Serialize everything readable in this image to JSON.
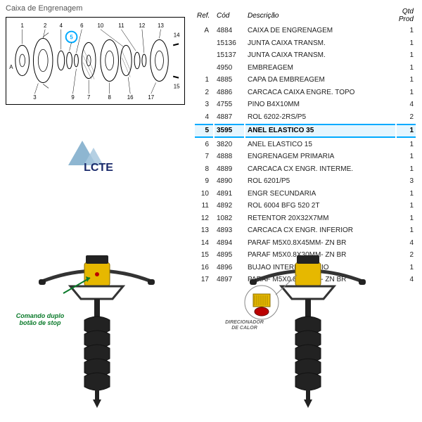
{
  "title": "Caixa de Engrenagem",
  "table": {
    "headers": {
      "ref": "Ref.",
      "cod": "Cód",
      "desc": "Descrição",
      "qtd": "Qtd Prod"
    },
    "rows": [
      {
        "ref": "A",
        "cod": "4884",
        "desc": "CAIXA DE ENGRENAGEM",
        "qtd": "1",
        "hl": false
      },
      {
        "ref": "",
        "cod": "15136",
        "desc": "JUNTA CAIXA TRANSM.",
        "qtd": "1",
        "hl": false
      },
      {
        "ref": "",
        "cod": "15137",
        "desc": "JUNTA CAIXA TRANSM.",
        "qtd": "1",
        "hl": false
      },
      {
        "ref": "",
        "cod": "4950",
        "desc": "EMBREAGEM",
        "qtd": "1",
        "hl": false
      },
      {
        "ref": "1",
        "cod": "4885",
        "desc": "CAPA DA EMBREAGEM",
        "qtd": "1",
        "hl": false
      },
      {
        "ref": "2",
        "cod": "4886",
        "desc": "CARCACA CAIXA ENGRE. TOPO",
        "qtd": "1",
        "hl": false
      },
      {
        "ref": "3",
        "cod": "4755",
        "desc": "PINO B4X10MM",
        "qtd": "4",
        "hl": false
      },
      {
        "ref": "4",
        "cod": "4887",
        "desc": "ROL 6202-2RS/P5",
        "qtd": "2",
        "hl": false
      },
      {
        "ref": "5",
        "cod": "3595",
        "desc": "ANEL ELASTICO 35",
        "qtd": "1",
        "hl": true
      },
      {
        "ref": "6",
        "cod": "3820",
        "desc": "ANEL ELASTICO 15",
        "qtd": "1",
        "hl": false
      },
      {
        "ref": "7",
        "cod": "4888",
        "desc": "ENGRENAGEM PRIMARIA",
        "qtd": "1",
        "hl": false
      },
      {
        "ref": "8",
        "cod": "4889",
        "desc": "CARCACA CX ENGR. INTERME.",
        "qtd": "1",
        "hl": false
      },
      {
        "ref": "9",
        "cod": "4890",
        "desc": "ROL 6201/P5",
        "qtd": "3",
        "hl": false
      },
      {
        "ref": "10",
        "cod": "4891",
        "desc": "ENGR SECUNDARIA",
        "qtd": "1",
        "hl": false
      },
      {
        "ref": "11",
        "cod": "4892",
        "desc": "ROL 6004 BFG 520 2T",
        "qtd": "1",
        "hl": false
      },
      {
        "ref": "12",
        "cod": "1082",
        "desc": "RETENTOR 20X32X7MM",
        "qtd": "1",
        "hl": false
      },
      {
        "ref": "13",
        "cod": "4893",
        "desc": "CARCACA CX ENGR. INFERIOR",
        "qtd": "1",
        "hl": false
      },
      {
        "ref": "14",
        "cod": "4894",
        "desc": "PARAF M5X0.8X45MM- ZN BR",
        "qtd": "4",
        "hl": false
      },
      {
        "ref": "15",
        "cod": "4895",
        "desc": "PARAF M5X0.8X30MM- ZN BR",
        "qtd": "2",
        "hl": false
      },
      {
        "ref": "16",
        "cod": "4896",
        "desc": "BUJAO INTERMEDIARIO",
        "qtd": "1",
        "hl": false
      },
      {
        "ref": "17",
        "cod": "4897",
        "desc": "PARAF M5X0.8X25MM- ZN BR",
        "qtd": "4",
        "hl": false
      }
    ]
  },
  "logo_text": "LCTE",
  "caption_left": "Comando duplo botão de stop",
  "caption_right": "DIRECIONADOR DE CALOR",
  "colors": {
    "highlight": "#00aaff",
    "logo_tri": "#7aa9c9",
    "logo_text": "#1a2a6b",
    "auger_yellow": "#e6b800",
    "auger_dark": "#222222",
    "green": "#0a7a2a"
  }
}
